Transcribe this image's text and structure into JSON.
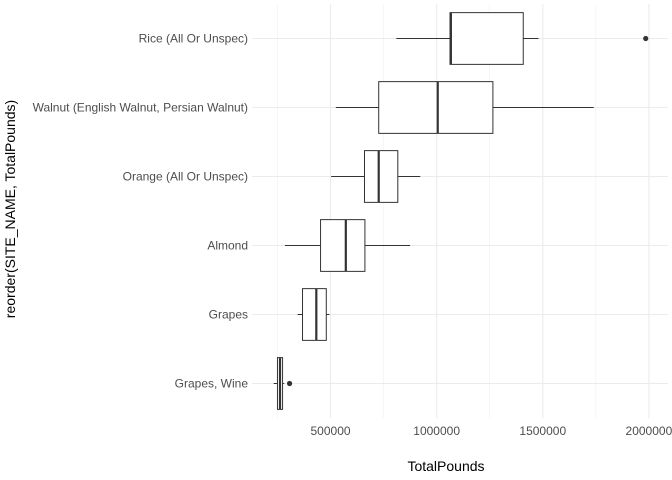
{
  "chart_data": {
    "type": "boxplot",
    "orientation": "horizontal",
    "xlabel": "TotalPounds",
    "ylabel": "reorder(SITE_NAME, TotalPounds)",
    "xlim": [
      130000,
      2090000
    ],
    "xticks": [
      500000,
      1000000,
      1500000,
      2000000
    ],
    "xtick_labels": [
      "500000",
      "1000000",
      "1500000",
      "2000000"
    ],
    "grid": true,
    "theme": "minimal",
    "categories": [
      "Grapes, Wine",
      "Grapes",
      "Almond",
      "Orange (All Or Unspec)",
      "Walnut (English Walnut, Persian Walnut)",
      "Rice (All Or Unspec)"
    ],
    "boxes": [
      {
        "category": "Grapes, Wine",
        "whisker_low": 232000,
        "q1": 250000,
        "median": 262000,
        "q3": 274000,
        "whisker_high": 282000,
        "outliers": [
          307000
        ]
      },
      {
        "category": "Grapes",
        "whisker_low": 345000,
        "q1": 368000,
        "median": 433000,
        "q3": 480000,
        "whisker_high": 495000,
        "outliers": []
      },
      {
        "category": "Almond",
        "whisker_low": 285000,
        "q1": 453000,
        "median": 572000,
        "q3": 662000,
        "whisker_high": 875000,
        "outliers": []
      },
      {
        "category": "Orange (All Or Unspec)",
        "whisker_low": 503000,
        "q1": 660000,
        "median": 727000,
        "q3": 817000,
        "whisker_high": 923000,
        "outliers": []
      },
      {
        "category": "Walnut (English Walnut, Persian Walnut)",
        "whisker_low": 525000,
        "q1": 727000,
        "median": 1005000,
        "q3": 1265000,
        "whisker_high": 1740000,
        "outliers": []
      },
      {
        "category": "Rice (All Or Unspec)",
        "whisker_low": 810000,
        "q1": 1063000,
        "median": 1067000,
        "q3": 1408000,
        "whisker_high": 1480000,
        "outliers": [
          1985000
        ]
      }
    ]
  }
}
